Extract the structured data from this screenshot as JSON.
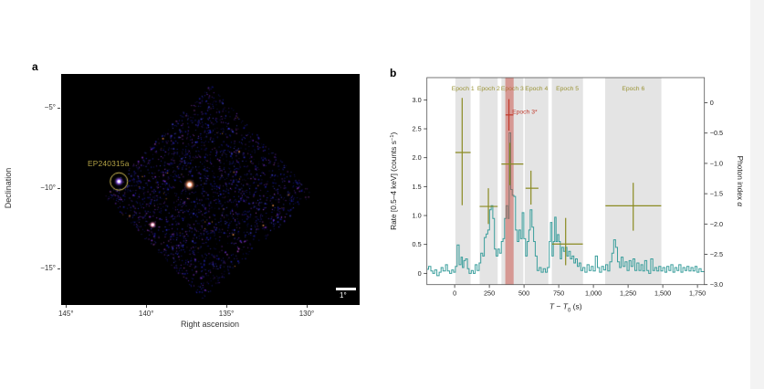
{
  "figure": {
    "panel_a_letter": "a",
    "panel_b_letter": "b"
  },
  "chart_data": [
    {
      "id": "skymap",
      "type": "heatmap",
      "panel": "a",
      "xlabel": "Right ascension",
      "ylabel": "Declination",
      "x_ticks": [
        {
          "value": 145,
          "label": "145°"
        },
        {
          "value": 140,
          "label": "140°"
        },
        {
          "value": 135,
          "label": "135°"
        },
        {
          "value": 130,
          "label": "130°"
        }
      ],
      "y_ticks": [
        {
          "value": -5,
          "label": "−5°"
        },
        {
          "value": -10,
          "label": "−10°"
        },
        {
          "value": -15,
          "label": "−15°"
        }
      ],
      "ra_range": [
        145.3,
        126.7
      ],
      "dec_range": [
        -2.9,
        -17.3
      ],
      "field_shape": "diamond",
      "sources": [
        {
          "label": "EP240315a",
          "ra": 141.7,
          "dec": -9.6,
          "circled": true
        },
        {
          "ra": 137.3,
          "dec": -9.8,
          "circled": false
        },
        {
          "ra": 139.6,
          "dec": -12.3,
          "circled": false
        }
      ],
      "scale_bar": {
        "label": "1°"
      },
      "colors": {
        "background": "#000000",
        "field_noise": [
          "#1c1cb4",
          "#2a2ad2",
          "#4343e2",
          "#16168e",
          "#7a2fd0",
          "#b44fd8",
          "#ff9a50"
        ],
        "circle": "#d8c45a",
        "source_label": "#b3a245",
        "scale_bar": "#ffffff"
      }
    },
    {
      "id": "lightcurve",
      "type": "line",
      "panel": "b",
      "step_mode": true,
      "xlabel_parts": [
        {
          "t": "T",
          "i": true
        },
        {
          "t": " − "
        },
        {
          "t": "T",
          "i": true
        },
        {
          "t": "0",
          "sub": true
        },
        {
          "t": " (s)"
        }
      ],
      "ylabel_left_parts": [
        {
          "t": "Rate [0.5–4 keV] (counts s"
        },
        {
          "t": "−1",
          "sup": true
        },
        {
          "t": ")"
        }
      ],
      "ylabel_right_parts": [
        {
          "t": "Photon index "
        },
        {
          "t": "α",
          "i": true
        }
      ],
      "x_range": [
        -200,
        1800
      ],
      "x_ticks": [
        {
          "value": 0,
          "label": "0"
        },
        {
          "value": 250,
          "label": "250"
        },
        {
          "value": 500,
          "label": "500"
        },
        {
          "value": 750,
          "label": "750"
        },
        {
          "value": 1000,
          "label": "1,000"
        },
        {
          "value": 1250,
          "label": "1,250"
        },
        {
          "value": 1500,
          "label": "1,500"
        },
        {
          "value": 1750,
          "label": "1,750"
        }
      ],
      "y_left_range": [
        -0.195,
        3.385
      ],
      "y_left_ticks": [
        {
          "value": 0,
          "label": "0"
        },
        {
          "value": 0.5,
          "label": "0.5"
        },
        {
          "value": 1.0,
          "label": "1.0"
        },
        {
          "value": 1.5,
          "label": "1.5"
        },
        {
          "value": 2.0,
          "label": "2.0"
        },
        {
          "value": 2.5,
          "label": "2.5"
        },
        {
          "value": 3.0,
          "label": "3.0"
        }
      ],
      "y_right_range": [
        -3.0,
        0.415
      ],
      "y_right_ticks": [
        {
          "value": 0,
          "label": "0"
        },
        {
          "value": -0.5,
          "label": "−0.5"
        },
        {
          "value": -1.0,
          "label": "−1.0"
        },
        {
          "value": -1.5,
          "label": "−1.5"
        },
        {
          "value": -2.0,
          "label": "−2.0"
        },
        {
          "value": -2.5,
          "label": "−2.5"
        },
        {
          "value": -3.0,
          "label": "−3.0"
        }
      ],
      "epochs": [
        {
          "label": "Epoch 1",
          "t_start": 5,
          "t_end": 115
        },
        {
          "label": "Epoch 2",
          "t_start": 180,
          "t_end": 310
        },
        {
          "label": "Epoch 3",
          "t_start": 337,
          "t_end": 495
        },
        {
          "label": "Epoch 4",
          "t_start": 505,
          "t_end": 675
        },
        {
          "label": "Epoch 5",
          "t_start": 700,
          "t_end": 925
        },
        {
          "label": "Epoch 6",
          "t_start": 1085,
          "t_end": 1490
        }
      ],
      "special_epoch": {
        "label": "Epoch 3*",
        "t_start": 365,
        "t_end": 425,
        "label_t": 505,
        "label_alpha": -0.18
      },
      "photon_index_points": [
        {
          "epoch": "Epoch 1",
          "t": 54,
          "t_lo": 5,
          "t_hi": 115,
          "alpha": -0.82,
          "alpha_lo": -1.69,
          "alpha_hi": 0.08,
          "color": "#8a8a21"
        },
        {
          "epoch": "Epoch 2",
          "t": 243,
          "t_lo": 180,
          "t_hi": 310,
          "alpha": -1.71,
          "alpha_lo": -2.0,
          "alpha_hi": -1.41,
          "color": "#8a8a21"
        },
        {
          "epoch": "Epoch 3",
          "t": 398,
          "t_lo": 337,
          "t_hi": 495,
          "alpha": -1.01,
          "alpha_lo": -1.36,
          "alpha_hi": -0.66,
          "color": "#8a8a21"
        },
        {
          "epoch": "Epoch 3*",
          "t": 391,
          "t_lo": 367,
          "t_hi": 423,
          "alpha": -0.2,
          "alpha_lo": -0.46,
          "alpha_hi": 0.06,
          "color": "#c0392b"
        },
        {
          "epoch": "Epoch 4",
          "t": 550,
          "t_lo": 511,
          "t_hi": 604,
          "alpha": -1.41,
          "alpha_lo": -1.68,
          "alpha_hi": -1.12,
          "color": "#8a8a21"
        },
        {
          "epoch": "Epoch 5",
          "t": 800,
          "t_lo": 702,
          "t_hi": 924,
          "alpha": -2.33,
          "alpha_lo": -2.68,
          "alpha_hi": -1.9,
          "color": "#8a8a21"
        },
        {
          "epoch": "Epoch 6",
          "t": 1287,
          "t_lo": 1087,
          "t_hi": 1489,
          "alpha": -1.7,
          "alpha_lo": -2.11,
          "alpha_hi": -1.32,
          "color": "#8a8a21"
        }
      ],
      "light_curve_step": [
        [
          -200,
          0.07
        ],
        [
          -188,
          0.12
        ],
        [
          -172,
          0.04
        ],
        [
          -158,
          0
        ],
        [
          -144,
          0.06
        ],
        [
          -128,
          -0.04
        ],
        [
          -112,
          0.02
        ],
        [
          -98,
          0.1
        ],
        [
          -84,
          0.04
        ],
        [
          -66,
          0.15
        ],
        [
          -52,
          0.04
        ],
        [
          -36,
          0
        ],
        [
          -22,
          0.06
        ],
        [
          -8,
          0.02
        ],
        [
          5,
          0.12
        ],
        [
          18,
          0.49
        ],
        [
          32,
          0.15
        ],
        [
          46,
          0.28
        ],
        [
          56,
          0.1
        ],
        [
          66,
          0.22
        ],
        [
          78,
          0.25
        ],
        [
          92,
          0.08
        ],
        [
          104,
          0
        ],
        [
          120,
          0.05
        ],
        [
          134,
          0
        ],
        [
          148,
          0.15
        ],
        [
          162,
          0.05
        ],
        [
          176,
          0.18
        ],
        [
          188,
          0.35
        ],
        [
          202,
          0.3
        ],
        [
          214,
          0.62
        ],
        [
          227,
          0.68
        ],
        [
          239,
          0.75
        ],
        [
          251,
          1.1
        ],
        [
          263,
          1.17
        ],
        [
          275,
          0.95
        ],
        [
          287,
          0.42
        ],
        [
          299,
          0.3
        ],
        [
          311,
          0.42
        ],
        [
          323,
          0.35
        ],
        [
          336,
          0.55
        ],
        [
          349,
          0.6
        ],
        [
          360,
          0.95
        ],
        [
          371,
          1.17
        ],
        [
          383,
          0.95
        ],
        [
          393,
          2.43
        ],
        [
          404,
          1.45
        ],
        [
          415,
          1.35
        ],
        [
          427,
          1.33
        ],
        [
          439,
          0.75
        ],
        [
          451,
          0.55
        ],
        [
          463,
          0.75
        ],
        [
          475,
          0.6
        ],
        [
          487,
          1.05
        ],
        [
          499,
          0.6
        ],
        [
          511,
          0.3
        ],
        [
          523,
          0.55
        ],
        [
          535,
          0.75
        ],
        [
          545,
          1.1
        ],
        [
          557,
          0.8
        ],
        [
          569,
          0.55
        ],
        [
          581,
          0.3
        ],
        [
          594,
          0.05
        ],
        [
          609,
          0.1
        ],
        [
          624,
          0.02
        ],
        [
          639,
          0.08
        ],
        [
          654,
          0.02
        ],
        [
          668,
          0.1
        ],
        [
          682,
          0.55
        ],
        [
          691,
          0.88
        ],
        [
          701,
          0.3
        ],
        [
          711,
          0.55
        ],
        [
          721,
          0.97
        ],
        [
          731,
          0.55
        ],
        [
          741,
          0.67
        ],
        [
          751,
          0.55
        ],
        [
          761,
          0.25
        ],
        [
          771,
          0.45
        ],
        [
          784,
          0.38
        ],
        [
          797,
          0.45
        ],
        [
          809,
          0.3
        ],
        [
          821,
          0.38
        ],
        [
          834,
          0.25
        ],
        [
          847,
          0.3
        ],
        [
          859,
          0.18
        ],
        [
          871,
          0.25
        ],
        [
          884,
          0.12
        ],
        [
          897,
          0.18
        ],
        [
          909,
          0.05
        ],
        [
          924,
          0.1
        ],
        [
          939,
          0.02
        ],
        [
          954,
          0.15
        ],
        [
          969,
          0.05
        ],
        [
          984,
          0.12
        ],
        [
          999,
          0.04
        ],
        [
          1014,
          0.3
        ],
        [
          1029,
          0.1
        ],
        [
          1044,
          0.02
        ],
        [
          1059,
          0.12
        ],
        [
          1074,
          0.06
        ],
        [
          1088,
          0.15
        ],
        [
          1103,
          0.04
        ],
        [
          1118,
          0.2
        ],
        [
          1133,
          0.35
        ],
        [
          1146,
          0.58
        ],
        [
          1160,
          0.45
        ],
        [
          1174,
          0.2
        ],
        [
          1188,
          0.1
        ],
        [
          1200,
          0.28
        ],
        [
          1214,
          0.12
        ],
        [
          1228,
          0.2
        ],
        [
          1243,
          0.05
        ],
        [
          1257,
          0.22
        ],
        [
          1271,
          0.12
        ],
        [
          1285,
          0.25
        ],
        [
          1299,
          0.05
        ],
        [
          1313,
          0.18
        ],
        [
          1328,
          0.05
        ],
        [
          1342,
          0.15
        ],
        [
          1356,
          0.04
        ],
        [
          1370,
          0.22
        ],
        [
          1385,
          0.05
        ],
        [
          1399,
          0
        ],
        [
          1413,
          0.25
        ],
        [
          1428,
          0.05
        ],
        [
          1442,
          0.1
        ],
        [
          1457,
          0.04
        ],
        [
          1471,
          0.12
        ],
        [
          1486,
          0.04
        ],
        [
          1500,
          0.1
        ],
        [
          1515,
          0.02
        ],
        [
          1529,
          0.12
        ],
        [
          1544,
          0.05
        ],
        [
          1558,
          0.15
        ],
        [
          1573,
          0.02
        ],
        [
          1587,
          0.1
        ],
        [
          1602,
          0.05
        ],
        [
          1616,
          0.15
        ],
        [
          1631,
          0.02
        ],
        [
          1645,
          0.1
        ],
        [
          1660,
          0.05
        ],
        [
          1674,
          0.12
        ],
        [
          1689,
          0.04
        ],
        [
          1703,
          0.1
        ],
        [
          1718,
          0.04
        ],
        [
          1732,
          0.12
        ],
        [
          1747,
          0.02
        ],
        [
          1761,
          0.08
        ],
        [
          1776,
          0.03
        ],
        [
          1800,
          0.03
        ]
      ],
      "colors": {
        "light_curve": "#3a9e9c",
        "epoch_band": "#e4e4e4",
        "epoch_label": "#9a9335",
        "special_band": "#c84b41",
        "special_label": "#c0392b",
        "axis": "#333333"
      }
    }
  ]
}
